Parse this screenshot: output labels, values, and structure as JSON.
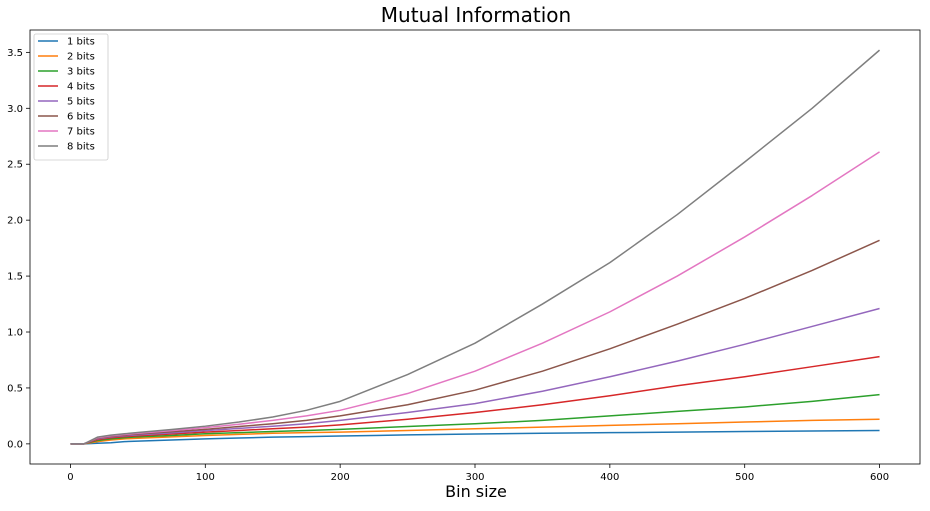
{
  "chart_data": {
    "type": "line",
    "title": "Mutual Information",
    "xlabel": "Bin size",
    "ylabel": "",
    "xlim": [
      -30,
      630
    ],
    "ylim": [
      -0.18,
      3.7
    ],
    "xticks": [
      0,
      100,
      200,
      300,
      400,
      500,
      600
    ],
    "yticks": [
      0.0,
      0.5,
      1.0,
      1.5,
      2.0,
      2.5,
      3.0,
      3.5
    ],
    "xtick_labels": [
      "0",
      "100",
      "200",
      "300",
      "400",
      "500",
      "600"
    ],
    "ytick_labels": [
      "0.0",
      "0.5",
      "1.0",
      "1.5",
      "2.0",
      "2.5",
      "3.0",
      "3.5"
    ],
    "grid": false,
    "legend_position": "top-left",
    "x": [
      0,
      10,
      20,
      30,
      40,
      50,
      75,
      100,
      125,
      150,
      175,
      200,
      250,
      300,
      350,
      400,
      450,
      500,
      550,
      600
    ],
    "series": [
      {
        "name": "1 bits",
        "color": "#1f77b4",
        "values": [
          0.0,
          0.0,
          0.005,
          0.01,
          0.02,
          0.025,
          0.035,
          0.045,
          0.052,
          0.06,
          0.065,
          0.07,
          0.08,
          0.088,
          0.095,
          0.1,
          0.105,
          0.11,
          0.115,
          0.12
        ]
      },
      {
        "name": "2 bits",
        "color": "#ff7f0e",
        "values": [
          0.0,
          0.0,
          0.02,
          0.035,
          0.045,
          0.05,
          0.062,
          0.075,
          0.085,
          0.095,
          0.1,
          0.105,
          0.12,
          0.135,
          0.15,
          0.165,
          0.18,
          0.195,
          0.21,
          0.22
        ]
      },
      {
        "name": "3 bits",
        "color": "#2ca02c",
        "values": [
          0.0,
          0.0,
          0.03,
          0.045,
          0.055,
          0.062,
          0.075,
          0.09,
          0.1,
          0.11,
          0.12,
          0.13,
          0.155,
          0.18,
          0.21,
          0.25,
          0.29,
          0.33,
          0.38,
          0.44
        ]
      },
      {
        "name": "4 bits",
        "color": "#d62728",
        "values": [
          0.0,
          0.0,
          0.038,
          0.055,
          0.065,
          0.072,
          0.088,
          0.105,
          0.12,
          0.135,
          0.15,
          0.17,
          0.22,
          0.28,
          0.35,
          0.43,
          0.52,
          0.6,
          0.69,
          0.78
        ]
      },
      {
        "name": "5 bits",
        "color": "#9467bd",
        "values": [
          0.0,
          0.0,
          0.045,
          0.062,
          0.072,
          0.08,
          0.098,
          0.118,
          0.138,
          0.158,
          0.18,
          0.21,
          0.28,
          0.36,
          0.47,
          0.6,
          0.74,
          0.89,
          1.05,
          1.21
        ]
      },
      {
        "name": "6 bits",
        "color": "#8c564b",
        "values": [
          0.0,
          0.0,
          0.05,
          0.068,
          0.078,
          0.088,
          0.108,
          0.13,
          0.155,
          0.18,
          0.21,
          0.25,
          0.35,
          0.48,
          0.65,
          0.85,
          1.07,
          1.3,
          1.55,
          1.82
        ]
      },
      {
        "name": "7 bits",
        "color": "#e377c2",
        "values": [
          0.0,
          0.0,
          0.055,
          0.072,
          0.084,
          0.095,
          0.118,
          0.145,
          0.175,
          0.21,
          0.25,
          0.3,
          0.45,
          0.65,
          0.9,
          1.18,
          1.5,
          1.85,
          2.22,
          2.61
        ]
      },
      {
        "name": "8 bits",
        "color": "#7f7f7f",
        "values": [
          0.0,
          0.0,
          0.06,
          0.078,
          0.09,
          0.102,
          0.128,
          0.158,
          0.195,
          0.24,
          0.3,
          0.38,
          0.62,
          0.9,
          1.25,
          1.62,
          2.05,
          2.52,
          3.0,
          3.52
        ]
      }
    ]
  }
}
